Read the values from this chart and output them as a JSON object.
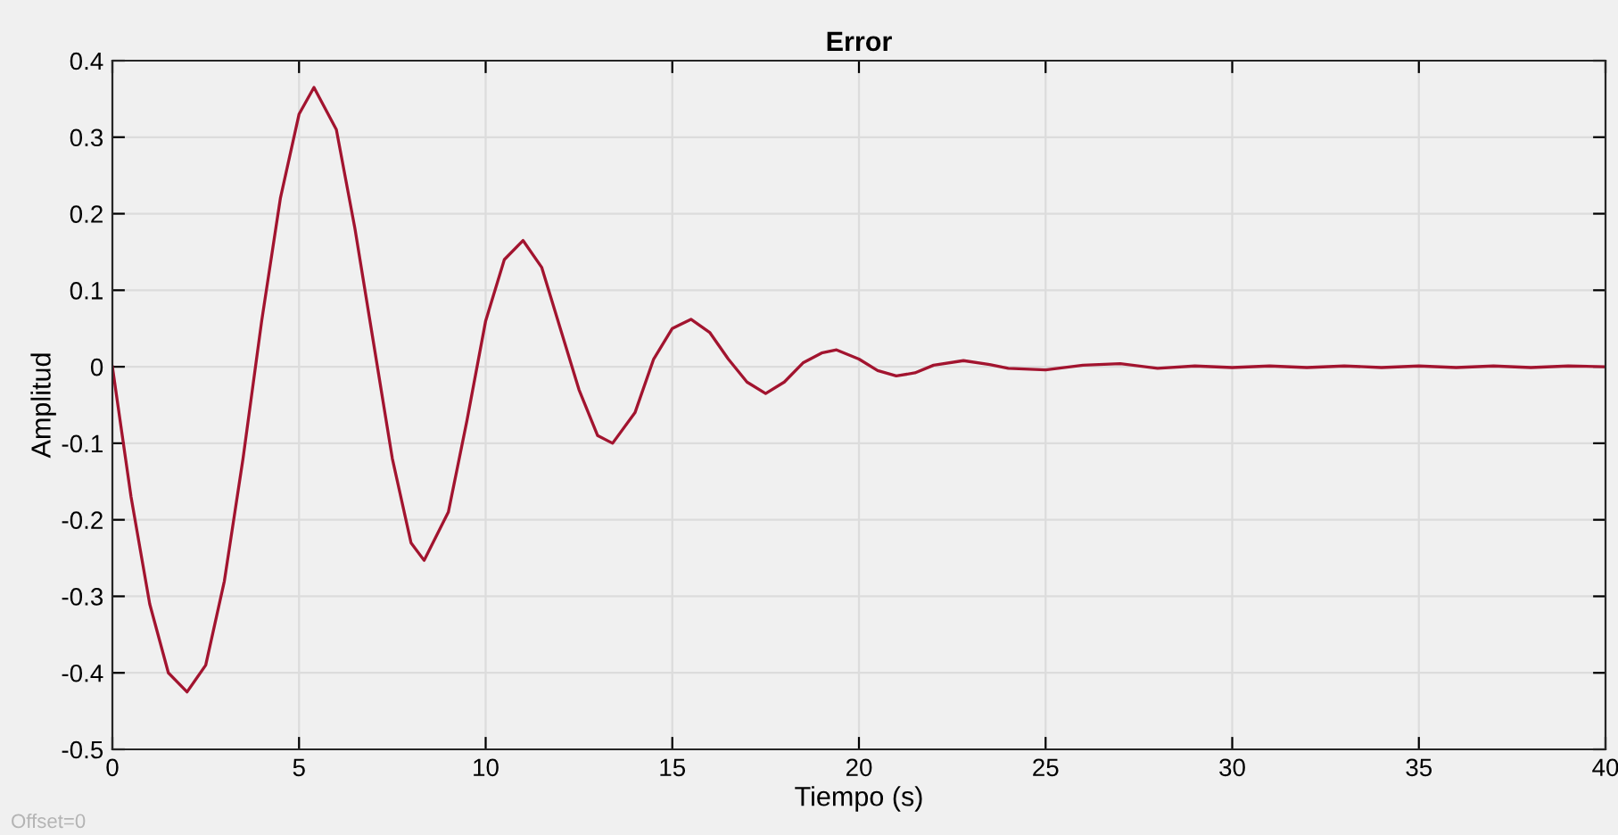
{
  "chart_data": {
    "type": "line",
    "title": "Error",
    "xlabel": "Tiempo (s)",
    "ylabel": "Amplitud",
    "annotations": [
      "Offset=0"
    ],
    "x": [
      0,
      0.5,
      1,
      1.5,
      2,
      2.5,
      3,
      3.5,
      4,
      4.5,
      5,
      5.4,
      6,
      6.5,
      7,
      7.5,
      8,
      8.35,
      9,
      9.5,
      10,
      10.5,
      11,
      11.5,
      12,
      12.5,
      13,
      13.4,
      14,
      14.5,
      15,
      15.5,
      16,
      16.5,
      17,
      17.5,
      18,
      18.5,
      19,
      19.4,
      20,
      20.5,
      21,
      21.5,
      22,
      22.8,
      23.5,
      24,
      25,
      26,
      27,
      28,
      29,
      30,
      31,
      32,
      33,
      34,
      35,
      36,
      37,
      38,
      39,
      40
    ],
    "series": [
      {
        "color": "#a2142f",
        "values": [
          0,
          -0.17,
          -0.31,
          -0.4,
          -0.425,
          -0.39,
          -0.28,
          -0.12,
          0.06,
          0.22,
          0.33,
          0.365,
          0.31,
          0.18,
          0.03,
          -0.12,
          -0.23,
          -0.253,
          -0.19,
          -0.07,
          0.06,
          0.14,
          0.165,
          0.13,
          0.05,
          -0.03,
          -0.09,
          -0.1,
          -0.06,
          0.01,
          0.05,
          0.062,
          0.045,
          0.01,
          -0.02,
          -0.035,
          -0.02,
          0.005,
          0.018,
          0.022,
          0.01,
          -0.005,
          -0.012,
          -0.008,
          0.002,
          0.008,
          0.003,
          -0.002,
          -0.004,
          0.002,
          0.004,
          -0.002,
          0.001,
          -0.001,
          0.001,
          -0.001,
          0.001,
          -0.001,
          0.001,
          -0.001,
          0.001,
          -0.001,
          0.001,
          0
        ]
      }
    ],
    "xlim": [
      0,
      40
    ],
    "xticks": [
      0,
      5,
      10,
      15,
      20,
      25,
      30,
      35,
      40
    ],
    "ylim": [
      -0.5,
      0.4
    ],
    "yticks": [
      -0.5,
      -0.4,
      -0.3,
      -0.2,
      -0.1,
      0,
      0.1,
      0.2,
      0.3,
      0.4
    ],
    "grid": true,
    "legend": false,
    "line_style": "solid",
    "marker": "none"
  }
}
